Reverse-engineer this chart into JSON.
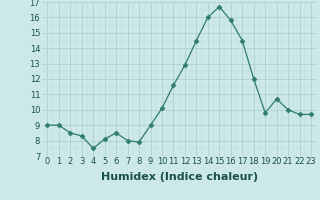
{
  "x": [
    0,
    1,
    2,
    3,
    4,
    5,
    6,
    7,
    8,
    9,
    10,
    11,
    12,
    13,
    14,
    15,
    16,
    17,
    18,
    19,
    20,
    21,
    22,
    23
  ],
  "y": [
    9.0,
    9.0,
    8.5,
    8.3,
    7.5,
    8.1,
    8.5,
    8.0,
    7.9,
    9.0,
    10.1,
    11.6,
    12.9,
    14.5,
    16.0,
    16.7,
    15.8,
    14.5,
    12.0,
    9.8,
    10.7,
    10.0,
    9.7,
    9.7
  ],
  "xlabel": "Humidex (Indice chaleur)",
  "xlim_min": -0.5,
  "xlim_max": 23.5,
  "ylim_min": 7,
  "ylim_max": 17,
  "yticks": [
    7,
    8,
    9,
    10,
    11,
    12,
    13,
    14,
    15,
    16,
    17
  ],
  "xticks": [
    0,
    1,
    2,
    3,
    4,
    5,
    6,
    7,
    8,
    9,
    10,
    11,
    12,
    13,
    14,
    15,
    16,
    17,
    18,
    19,
    20,
    21,
    22,
    23
  ],
  "line_color": "#2e7d6e",
  "marker": "D",
  "marker_size": 2.5,
  "bg_color": "#cce8e8",
  "grid_major_color": "#aacccc",
  "grid_minor_color": "#bbdddd",
  "xlabel_fontsize": 8,
  "tick_fontsize": 6,
  "xlabel_color": "#1a5050",
  "tick_color": "#1a5050"
}
